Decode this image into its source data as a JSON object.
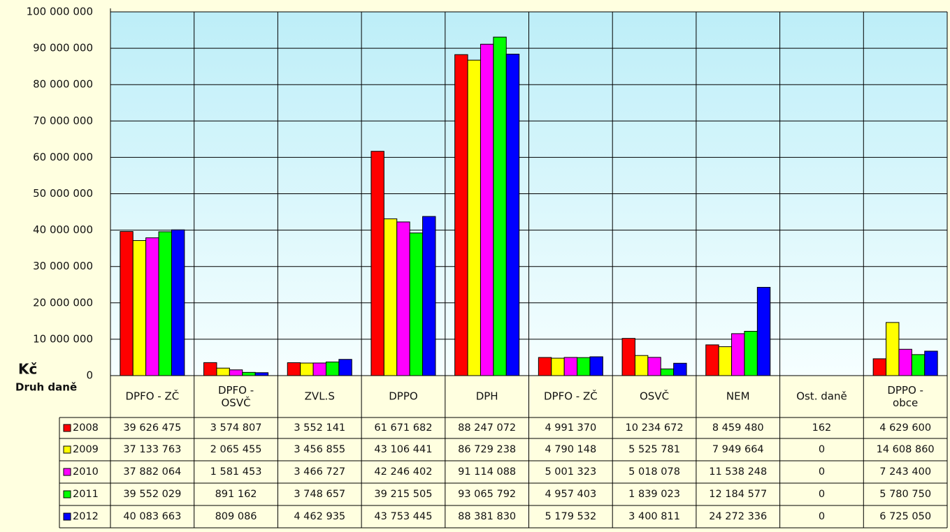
{
  "chart_data": {
    "type": "bar",
    "axis_label": "Kč",
    "table_header": "Druh daně",
    "categories": [
      "DPFO - ZČ",
      "DPFO -\nOSVČ",
      "ZVL.S",
      "DPPO",
      "DPH",
      "DPFO - ZČ",
      "OSVČ",
      "NEM",
      "Ost. daně",
      "DPPO -\nobce"
    ],
    "series": [
      {
        "name": "2008",
        "color": "#ff0000",
        "values": [
          39626475,
          3574807,
          3552141,
          61671682,
          88247072,
          4991370,
          10234672,
          8459480,
          162,
          4629600
        ],
        "value_labels": [
          "39 626 475",
          "3 574 807",
          "3 552 141",
          "61 671 682",
          "88 247 072",
          "4 991 370",
          "10 234 672",
          "8 459 480",
          "162",
          "4 629 600"
        ]
      },
      {
        "name": "2009",
        "color": "#ffff00",
        "values": [
          37133763,
          2065455,
          3456855,
          43106441,
          86729238,
          4790148,
          5525781,
          7949664,
          0,
          14608860
        ],
        "value_labels": [
          "37 133 763",
          "2 065 455",
          "3 456 855",
          "43 106 441",
          "86 729 238",
          "4 790 148",
          "5 525 781",
          "7 949 664",
          "0",
          "14 608 860"
        ]
      },
      {
        "name": "2010",
        "color": "#ff00ff",
        "values": [
          37882064,
          1581453,
          3466727,
          42246402,
          91114088,
          5001323,
          5018078,
          11538248,
          0,
          7243400
        ],
        "value_labels": [
          "37 882 064",
          "1 581 453",
          "3 466 727",
          "42 246 402",
          "91 114 088",
          "5 001 323",
          "5 018 078",
          "11 538 248",
          "0",
          "7 243 400"
        ]
      },
      {
        "name": "2011",
        "color": "#00ff00",
        "values": [
          39552029,
          891162,
          3748657,
          39215505,
          93065792,
          4957403,
          1839023,
          12184577,
          0,
          5780750
        ],
        "value_labels": [
          "39 552 029",
          "891 162",
          "3 748 657",
          "39 215 505",
          "93 065 792",
          "4 957 403",
          "1 839 023",
          "12 184 577",
          "0",
          "5 780 750"
        ]
      },
      {
        "name": "2012",
        "color": "#0000ff",
        "values": [
          40083663,
          809086,
          4462935,
          43753445,
          88381830,
          5179532,
          3400811,
          24272336,
          0,
          6725050
        ],
        "value_labels": [
          "40 083 663",
          "809 086",
          "4 462 935",
          "43 753 445",
          "88 381 830",
          "5 179 532",
          "3 400 811",
          "24 272 336",
          "0",
          "6 725 050"
        ]
      }
    ],
    "ylim": [
      0,
      100000000
    ],
    "yticks": [
      0,
      {
        "value": 10000000,
        "label": "10 000 000"
      },
      {
        "value": 20000000,
        "label": "20 000 000"
      },
      {
        "value": 30000000,
        "label": "30 000 000"
      },
      {
        "value": 40000000,
        "label": "40 000 000"
      },
      {
        "value": 50000000,
        "label": "50 000 000"
      },
      {
        "value": 60000000,
        "label": "60 000 000"
      },
      {
        "value": 70000000,
        "label": "70 000 000"
      },
      {
        "value": 80000000,
        "label": "80 000 000"
      },
      {
        "value": 90000000,
        "label": "90 000 000"
      },
      {
        "value": 100000000,
        "label": "100 000 000"
      }
    ],
    "grid": true
  }
}
